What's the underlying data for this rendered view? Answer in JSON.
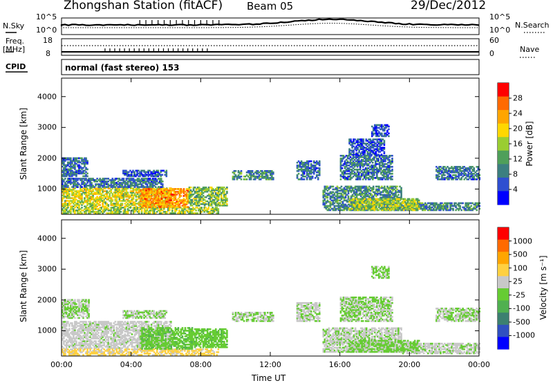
{
  "header": {
    "station_title": "Zhongshan Station (fitACF)",
    "beam": "Beam 05",
    "date": "29/Dec/2012"
  },
  "top_panels": {
    "nsky_label": "N.Sky",
    "nsky_ticks": [
      "10^5",
      "10^0"
    ],
    "nsearch_label": "N.Search",
    "nsearch_ticks": [
      "10^5",
      "10^0"
    ],
    "freq_label": "Freq.",
    "freq_unit": "[MHz]",
    "freq_ticks": [
      "18",
      "8"
    ],
    "nave_label": "Nave",
    "nave_ticks": [
      "60",
      "0"
    ],
    "cpid_label": "CPID",
    "cpid_text": "normal (fast stereo) 153"
  },
  "chart_data": [
    {
      "type": "heatmap",
      "name": "power-panel",
      "ylabel": "Slant Range [km]",
      "yticks": [
        "4000",
        "3000",
        "2000",
        "1000"
      ],
      "ylim": [
        180,
        4600
      ],
      "xlabel": "",
      "xticks": [
        "00:00",
        "04:00",
        "08:00",
        "12:00",
        "16:00",
        "20:00",
        "00:00"
      ],
      "colorbar": {
        "label": "Power [dB]",
        "ticks": [
          "28",
          "24",
          "20",
          "16",
          "12",
          "8",
          "4"
        ],
        "range": [
          0,
          32
        ],
        "colors": [
          "#0000ff",
          "#2f4fd0",
          "#3c7f80",
          "#4f9f5a",
          "#9acd32",
          "#ffd700",
          "#ffa500",
          "#ff6a00",
          "#ff0000"
        ]
      },
      "patches": [
        {
          "t": [
            0.0,
            6.3
          ],
          "r": [
            420,
            1050
          ],
          "level": 18
        },
        {
          "t": [
            0.0,
            5.8
          ],
          "r": [
            1050,
            1350
          ],
          "level": 8
        },
        {
          "t": [
            0.0,
            1.5
          ],
          "r": [
            1400,
            2000
          ],
          "level": 8
        },
        {
          "t": [
            3.5,
            6.0
          ],
          "r": [
            1400,
            1600
          ],
          "level": 6
        },
        {
          "t": [
            0.0,
            9.0
          ],
          "r": [
            200,
            420
          ],
          "level": 16
        },
        {
          "t": [
            4.5,
            7.3
          ],
          "r": [
            400,
            1000
          ],
          "level": 24
        },
        {
          "t": [
            7.3,
            9.5
          ],
          "r": [
            450,
            1050
          ],
          "level": 14
        },
        {
          "t": [
            9.8,
            12.2
          ],
          "r": [
            1300,
            1600
          ],
          "level": 10
        },
        {
          "t": [
            13.5,
            14.8
          ],
          "r": [
            1300,
            1900
          ],
          "level": 8
        },
        {
          "t": [
            15.0,
            19.5
          ],
          "r": [
            300,
            1100
          ],
          "level": 10
        },
        {
          "t": [
            16.0,
            19.0
          ],
          "r": [
            1300,
            2100
          ],
          "level": 8
        },
        {
          "t": [
            16.5,
            18.5
          ],
          "r": [
            2100,
            2600
          ],
          "level": 6
        },
        {
          "t": [
            17.8,
            18.8
          ],
          "r": [
            2700,
            3100
          ],
          "level": 6
        },
        {
          "t": [
            19.5,
            24.0
          ],
          "r": [
            300,
            550
          ],
          "level": 10
        },
        {
          "t": [
            21.5,
            24.0
          ],
          "r": [
            1300,
            1750
          ],
          "level": 8
        },
        {
          "t": [
            16.5,
            20.5
          ],
          "r": [
            300,
            700
          ],
          "level": 16
        }
      ]
    },
    {
      "type": "heatmap",
      "name": "velocity-panel",
      "ylabel": "Slant Range [km]",
      "yticks": [
        "4000",
        "3000",
        "2000",
        "1000"
      ],
      "ylim": [
        180,
        4600
      ],
      "xlabel": "Time UT",
      "xticks": [
        "00:00",
        "04:00",
        "08:00",
        "12:00",
        "16:00",
        "20:00",
        "00:00"
      ],
      "colorbar": {
        "label": "Velocity [m s⁻¹]",
        "ticks": [
          "1000",
          "500",
          "100",
          "25",
          "-25",
          "-100",
          "-500",
          "-1000"
        ],
        "range": [
          -1200,
          1200
        ],
        "colors": [
          "#0000ff",
          "#3050c0",
          "#3c8070",
          "#50b050",
          "#66cc33",
          "#c8c8c8",
          "#ffd040",
          "#ffa500",
          "#ff6a00",
          "#ff0000"
        ]
      },
      "patches": [
        {
          "t": [
            0.0,
            6.3
          ],
          "r": [
            420,
            1300
          ],
          "level": 110
        },
        {
          "t": [
            0.0,
            1.6
          ],
          "r": [
            1400,
            2000
          ],
          "level": 0
        },
        {
          "t": [
            3.5,
            6.0
          ],
          "r": [
            1400,
            1650
          ],
          "level": 0
        },
        {
          "t": [
            0.0,
            9.0
          ],
          "r": [
            200,
            420
          ],
          "level": 300
        },
        {
          "t": [
            4.5,
            7.5
          ],
          "r": [
            400,
            1100
          ],
          "level": -150
        },
        {
          "t": [
            7.3,
            9.5
          ],
          "r": [
            450,
            1050
          ],
          "level": -150
        },
        {
          "t": [
            9.8,
            12.2
          ],
          "r": [
            1300,
            1600
          ],
          "level": 0
        },
        {
          "t": [
            13.5,
            14.8
          ],
          "r": [
            1300,
            1900
          ],
          "level": 60
        },
        {
          "t": [
            15.0,
            19.5
          ],
          "r": [
            300,
            1100
          ],
          "level": 60
        },
        {
          "t": [
            16.0,
            19.0
          ],
          "r": [
            1300,
            2100
          ],
          "level": 0
        },
        {
          "t": [
            17.8,
            18.8
          ],
          "r": [
            2700,
            3100
          ],
          "level": -60
        },
        {
          "t": [
            19.5,
            24.0
          ],
          "r": [
            250,
            600
          ],
          "level": 60
        },
        {
          "t": [
            21.5,
            24.0
          ],
          "r": [
            1300,
            1750
          ],
          "level": 0
        },
        {
          "t": [
            16.5,
            20.5
          ],
          "r": [
            300,
            700
          ],
          "level": -60
        }
      ]
    }
  ]
}
